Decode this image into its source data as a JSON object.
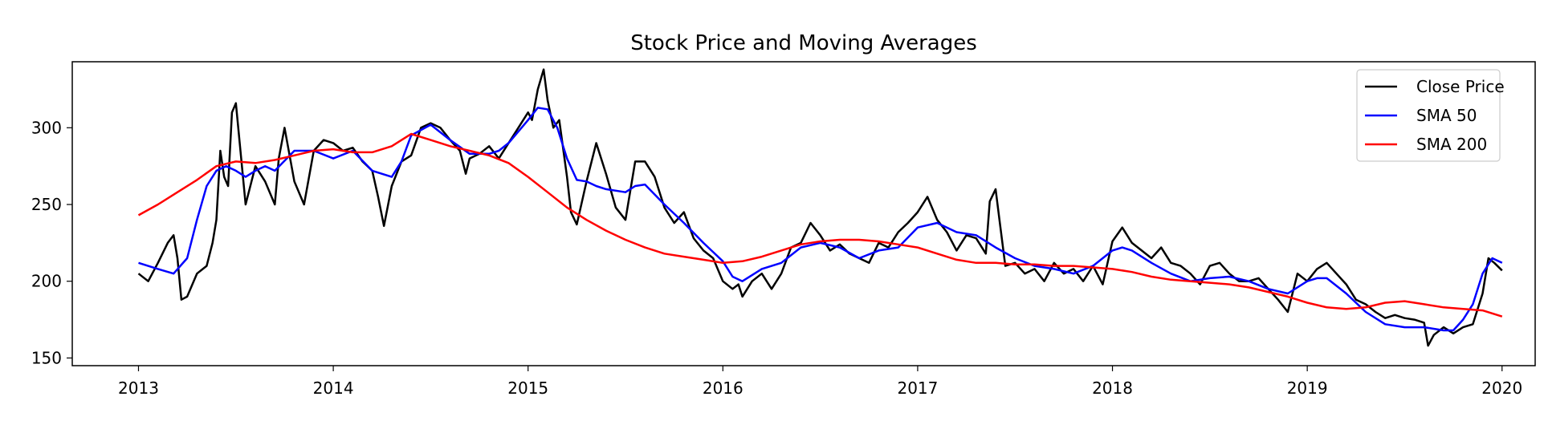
{
  "chart_data": {
    "type": "line",
    "title": "Stock Price and Moving Averages",
    "xlabel": "",
    "ylabel": "",
    "xlim": [
      2012.66,
      2020.17
    ],
    "ylim": [
      145,
      343
    ],
    "xticks": [
      2013,
      2014,
      2015,
      2016,
      2017,
      2018,
      2019,
      2020
    ],
    "xtick_labels": [
      "2013",
      "2014",
      "2015",
      "2016",
      "2017",
      "2018",
      "2019",
      "2020"
    ],
    "yticks": [
      150,
      200,
      250,
      300
    ],
    "ytick_labels": [
      "150",
      "200",
      "250",
      "300"
    ],
    "grid": false,
    "legend_position": "top-right",
    "series": [
      {
        "name": "Close Price",
        "color": "#000000",
        "x": [
          2013.0,
          2013.05,
          2013.1,
          2013.15,
          2013.18,
          2013.2,
          2013.22,
          2013.25,
          2013.3,
          2013.35,
          2013.38,
          2013.4,
          2013.42,
          2013.44,
          2013.46,
          2013.48,
          2013.5,
          2013.55,
          2013.6,
          2013.65,
          2013.7,
          2013.72,
          2013.75,
          2013.8,
          2013.85,
          2013.9,
          2013.95,
          2014.0,
          2014.05,
          2014.1,
          2014.15,
          2014.2,
          2014.23,
          2014.26,
          2014.3,
          2014.35,
          2014.4,
          2014.45,
          2014.5,
          2014.55,
          2014.6,
          2014.65,
          2014.68,
          2014.7,
          2014.75,
          2014.8,
          2014.85,
          2014.9,
          2014.95,
          2015.0,
          2015.02,
          2015.05,
          2015.08,
          2015.1,
          2015.13,
          2015.16,
          2015.2,
          2015.22,
          2015.25,
          2015.3,
          2015.35,
          2015.4,
          2015.45,
          2015.5,
          2015.55,
          2015.6,
          2015.65,
          2015.7,
          2015.75,
          2015.8,
          2015.85,
          2015.9,
          2015.95,
          2016.0,
          2016.05,
          2016.08,
          2016.1,
          2016.15,
          2016.2,
          2016.25,
          2016.3,
          2016.35,
          2016.4,
          2016.45,
          2016.5,
          2016.55,
          2016.6,
          2016.65,
          2016.7,
          2016.75,
          2016.8,
          2016.85,
          2016.9,
          2016.95,
          2017.0,
          2017.05,
          2017.1,
          2017.15,
          2017.2,
          2017.25,
          2017.3,
          2017.35,
          2017.37,
          2017.4,
          2017.42,
          2017.45,
          2017.5,
          2017.55,
          2017.6,
          2017.65,
          2017.7,
          2017.75,
          2017.8,
          2017.85,
          2017.9,
          2017.95,
          2018.0,
          2018.05,
          2018.1,
          2018.15,
          2018.2,
          2018.25,
          2018.3,
          2018.35,
          2018.4,
          2018.45,
          2018.5,
          2018.55,
          2018.6,
          2018.65,
          2018.7,
          2018.75,
          2018.8,
          2018.85,
          2018.9,
          2018.95,
          2019.0,
          2019.05,
          2019.1,
          2019.15,
          2019.2,
          2019.25,
          2019.3,
          2019.35,
          2019.4,
          2019.45,
          2019.5,
          2019.55,
          2019.6,
          2019.62,
          2019.65,
          2019.7,
          2019.75,
          2019.8,
          2019.85,
          2019.9,
          2019.93,
          2019.96,
          2020.0
        ],
        "y": [
          205,
          200,
          212,
          225,
          230,
          215,
          188,
          190,
          205,
          210,
          225,
          240,
          285,
          268,
          262,
          310,
          316,
          250,
          275,
          265,
          250,
          280,
          300,
          265,
          250,
          285,
          292,
          290,
          285,
          287,
          278,
          272,
          255,
          236,
          262,
          278,
          282,
          300,
          303,
          300,
          292,
          285,
          270,
          280,
          283,
          288,
          280,
          290,
          300,
          310,
          305,
          325,
          338,
          318,
          300,
          305,
          268,
          245,
          237,
          265,
          290,
          270,
          248,
          240,
          278,
          278,
          268,
          248,
          238,
          245,
          228,
          220,
          215,
          200,
          195,
          198,
          190,
          200,
          205,
          195,
          205,
          222,
          225,
          238,
          230,
          220,
          224,
          218,
          215,
          212,
          225,
          222,
          232,
          238,
          245,
          255,
          240,
          232,
          220,
          230,
          228,
          218,
          252,
          260,
          240,
          210,
          212,
          205,
          208,
          200,
          212,
          205,
          208,
          200,
          210,
          198,
          226,
          235,
          225,
          220,
          215,
          222,
          212,
          210,
          205,
          198,
          210,
          212,
          205,
          200,
          200,
          202,
          195,
          188,
          180,
          205,
          200,
          208,
          212,
          205,
          198,
          188,
          185,
          180,
          176,
          178,
          176,
          175,
          173,
          158,
          165,
          170,
          166,
          170,
          172,
          192,
          215,
          212,
          207
        ],
        "width": 2.5
      },
      {
        "name": "SMA 50",
        "color": "#0000ff",
        "x": [
          2013.0,
          2013.1,
          2013.18,
          2013.25,
          2013.3,
          2013.35,
          2013.4,
          2013.45,
          2013.5,
          2013.55,
          2013.6,
          2013.65,
          2013.7,
          2013.8,
          2013.9,
          2014.0,
          2014.1,
          2014.2,
          2014.3,
          2014.35,
          2014.4,
          2014.5,
          2014.6,
          2014.7,
          2014.8,
          2014.85,
          2014.9,
          2015.0,
          2015.05,
          2015.1,
          2015.15,
          2015.2,
          2015.25,
          2015.3,
          2015.35,
          2015.4,
          2015.5,
          2015.55,
          2015.6,
          2015.7,
          2015.8,
          2015.9,
          2016.0,
          2016.05,
          2016.1,
          2016.2,
          2016.3,
          2016.4,
          2016.5,
          2016.6,
          2016.7,
          2016.8,
          2016.9,
          2017.0,
          2017.1,
          2017.2,
          2017.3,
          2017.4,
          2017.5,
          2017.6,
          2017.7,
          2017.8,
          2017.9,
          2018.0,
          2018.05,
          2018.1,
          2018.2,
          2018.3,
          2018.4,
          2018.5,
          2018.6,
          2018.7,
          2018.8,
          2018.9,
          2019.0,
          2019.05,
          2019.1,
          2019.2,
          2019.3,
          2019.4,
          2019.5,
          2019.6,
          2019.7,
          2019.75,
          2019.8,
          2019.85,
          2019.9,
          2019.95,
          2020.0
        ],
        "y": [
          212,
          208,
          205,
          215,
          240,
          262,
          272,
          275,
          272,
          268,
          272,
          275,
          272,
          285,
          285,
          280,
          285,
          272,
          268,
          278,
          295,
          302,
          292,
          283,
          283,
          285,
          290,
          305,
          313,
          312,
          300,
          280,
          266,
          265,
          262,
          260,
          258,
          262,
          263,
          250,
          238,
          225,
          213,
          203,
          200,
          208,
          212,
          222,
          225,
          222,
          215,
          220,
          222,
          235,
          238,
          232,
          230,
          222,
          215,
          210,
          208,
          205,
          210,
          220,
          222,
          220,
          212,
          205,
          200,
          202,
          203,
          200,
          195,
          192,
          200,
          202,
          202,
          192,
          180,
          172,
          170,
          170,
          168,
          168,
          175,
          185,
          205,
          215,
          212
        ],
        "width": 2.5
      },
      {
        "name": "SMA 200",
        "color": "#ff0000",
        "x": [
          2013.0,
          2013.1,
          2013.2,
          2013.3,
          2013.4,
          2013.5,
          2013.6,
          2013.7,
          2013.8,
          2013.9,
          2014.0,
          2014.1,
          2014.2,
          2014.3,
          2014.4,
          2014.5,
          2014.6,
          2014.7,
          2014.8,
          2014.9,
          2015.0,
          2015.1,
          2015.2,
          2015.3,
          2015.4,
          2015.5,
          2015.6,
          2015.7,
          2015.8,
          2015.9,
          2016.0,
          2016.1,
          2016.2,
          2016.3,
          2016.4,
          2016.5,
          2016.6,
          2016.7,
          2016.8,
          2016.9,
          2017.0,
          2017.1,
          2017.2,
          2017.3,
          2017.4,
          2017.5,
          2017.6,
          2017.7,
          2017.8,
          2017.9,
          2018.0,
          2018.1,
          2018.2,
          2018.3,
          2018.4,
          2018.5,
          2018.6,
          2018.7,
          2018.8,
          2018.9,
          2019.0,
          2019.1,
          2019.2,
          2019.3,
          2019.4,
          2019.5,
          2019.6,
          2019.7,
          2019.8,
          2019.9,
          2020.0
        ],
        "y": [
          243,
          250,
          258,
          266,
          275,
          278,
          277,
          279,
          282,
          285,
          286,
          284,
          284,
          288,
          296,
          292,
          288,
          285,
          282,
          277,
          268,
          258,
          248,
          240,
          233,
          227,
          222,
          218,
          216,
          214,
          212,
          213,
          216,
          220,
          224,
          226,
          227,
          227,
          226,
          224,
          222,
          218,
          214,
          212,
          212,
          211,
          211,
          210,
          210,
          209,
          208,
          206,
          203,
          201,
          200,
          199,
          198,
          196,
          193,
          190,
          186,
          183,
          182,
          183,
          186,
          187,
          185,
          183,
          182,
          181,
          177
        ],
        "width": 2.5
      }
    ]
  }
}
